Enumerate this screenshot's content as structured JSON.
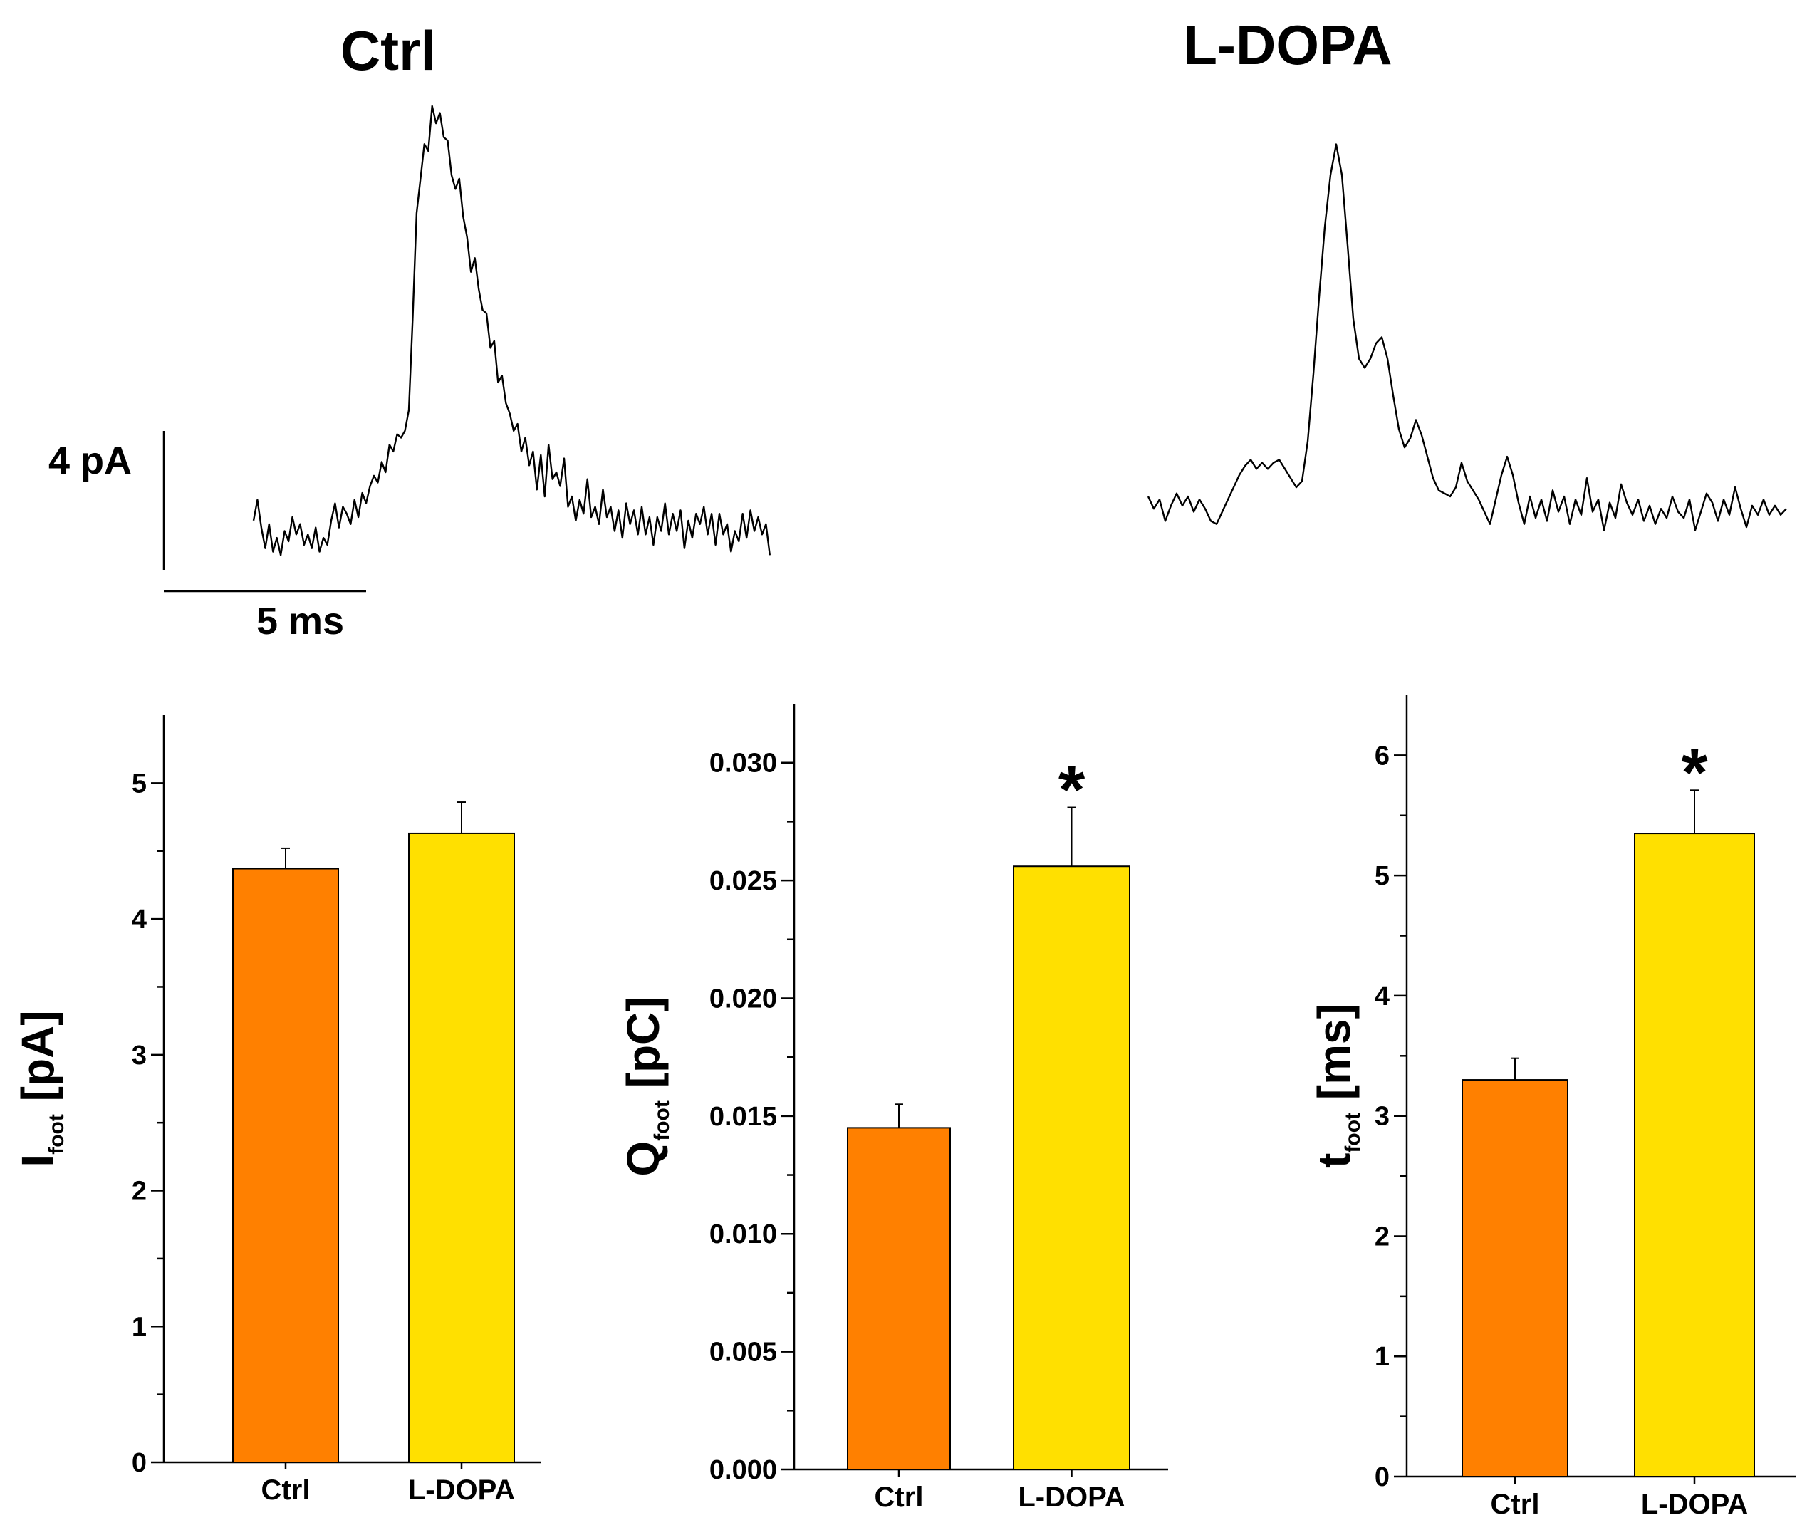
{
  "traces": {
    "ctrl": {
      "title": "Ctrl",
      "points": [
        [
          0,
          0.6
        ],
        [
          0.1,
          1.2
        ],
        [
          0.2,
          0.4
        ],
        [
          0.3,
          -0.2
        ],
        [
          0.4,
          0.5
        ],
        [
          0.5,
          -0.3
        ],
        [
          0.6,
          0.1
        ],
        [
          0.7,
          -0.4
        ],
        [
          0.8,
          0.3
        ],
        [
          0.9,
          0.0
        ],
        [
          1.0,
          0.7
        ],
        [
          1.1,
          0.2
        ],
        [
          1.2,
          0.5
        ],
        [
          1.3,
          -0.1
        ],
        [
          1.4,
          0.2
        ],
        [
          1.5,
          -0.2
        ],
        [
          1.6,
          0.4
        ],
        [
          1.7,
          -0.3
        ],
        [
          1.8,
          0.1
        ],
        [
          1.9,
          -0.1
        ],
        [
          2.0,
          0.6
        ],
        [
          2.1,
          1.1
        ],
        [
          2.2,
          0.4
        ],
        [
          2.3,
          1.0
        ],
        [
          2.4,
          0.8
        ],
        [
          2.5,
          0.5
        ],
        [
          2.6,
          1.2
        ],
        [
          2.7,
          0.7
        ],
        [
          2.8,
          1.4
        ],
        [
          2.9,
          1.1
        ],
        [
          3.0,
          1.6
        ],
        [
          3.1,
          1.9
        ],
        [
          3.2,
          1.7
        ],
        [
          3.3,
          2.3
        ],
        [
          3.4,
          2.0
        ],
        [
          3.5,
          2.8
        ],
        [
          3.6,
          2.6
        ],
        [
          3.7,
          3.1
        ],
        [
          3.8,
          3.0
        ],
        [
          3.9,
          3.2
        ],
        [
          4.0,
          3.8
        ],
        [
          4.1,
          6.5
        ],
        [
          4.2,
          9.5
        ],
        [
          4.3,
          10.5
        ],
        [
          4.4,
          11.5
        ],
        [
          4.5,
          11.3
        ],
        [
          4.6,
          12.6
        ],
        [
          4.7,
          12.1
        ],
        [
          4.8,
          12.4
        ],
        [
          4.9,
          11.7
        ],
        [
          5.0,
          11.6
        ],
        [
          5.1,
          10.6
        ],
        [
          5.2,
          10.2
        ],
        [
          5.3,
          10.5
        ],
        [
          5.4,
          9.4
        ],
        [
          5.5,
          8.8
        ],
        [
          5.6,
          7.8
        ],
        [
          5.7,
          8.2
        ],
        [
          5.8,
          7.3
        ],
        [
          5.9,
          6.7
        ],
        [
          6.0,
          6.6
        ],
        [
          6.1,
          5.6
        ],
        [
          6.2,
          5.8
        ],
        [
          6.3,
          4.6
        ],
        [
          6.4,
          4.8
        ],
        [
          6.5,
          4.0
        ],
        [
          6.6,
          3.7
        ],
        [
          6.7,
          3.2
        ],
        [
          6.8,
          3.4
        ],
        [
          6.9,
          2.6
        ],
        [
          7.0,
          3.0
        ],
        [
          7.1,
          2.2
        ],
        [
          7.2,
          2.6
        ],
        [
          7.3,
          1.5
        ],
        [
          7.4,
          2.5
        ],
        [
          7.5,
          1.3
        ],
        [
          7.6,
          2.8
        ],
        [
          7.7,
          1.8
        ],
        [
          7.8,
          2.0
        ],
        [
          7.9,
          1.6
        ],
        [
          8.0,
          2.4
        ],
        [
          8.1,
          1.0
        ],
        [
          8.2,
          1.3
        ],
        [
          8.3,
          0.6
        ],
        [
          8.4,
          1.2
        ],
        [
          8.5,
          0.8
        ],
        [
          8.6,
          1.8
        ],
        [
          8.7,
          0.7
        ],
        [
          8.8,
          1.0
        ],
        [
          8.9,
          0.5
        ],
        [
          9.0,
          1.5
        ],
        [
          9.1,
          0.7
        ],
        [
          9.2,
          1.0
        ],
        [
          9.3,
          0.3
        ],
        [
          9.4,
          0.9
        ],
        [
          9.5,
          0.1
        ],
        [
          9.6,
          1.1
        ],
        [
          9.7,
          0.5
        ],
        [
          9.8,
          0.9
        ],
        [
          9.9,
          0.2
        ],
        [
          10.0,
          1.0
        ],
        [
          10.1,
          0.2
        ],
        [
          10.2,
          0.7
        ],
        [
          10.3,
          -0.1
        ],
        [
          10.4,
          0.7
        ],
        [
          10.5,
          0.3
        ],
        [
          10.6,
          1.1
        ],
        [
          10.7,
          0.2
        ],
        [
          10.8,
          0.8
        ],
        [
          10.9,
          0.3
        ],
        [
          11.0,
          0.9
        ],
        [
          11.1,
          -0.2
        ],
        [
          11.2,
          0.6
        ],
        [
          11.3,
          0.1
        ],
        [
          11.4,
          0.8
        ],
        [
          11.5,
          0.5
        ],
        [
          11.6,
          1.0
        ],
        [
          11.7,
          0.2
        ],
        [
          11.8,
          0.8
        ],
        [
          11.9,
          -0.1
        ],
        [
          12.0,
          0.8
        ],
        [
          12.1,
          0.2
        ],
        [
          12.2,
          0.5
        ],
        [
          12.3,
          -0.3
        ],
        [
          12.4,
          0.3
        ],
        [
          12.5,
          0.0
        ],
        [
          12.6,
          0.8
        ],
        [
          12.7,
          0.1
        ],
        [
          12.8,
          0.9
        ],
        [
          12.9,
          0.3
        ],
        [
          13.0,
          0.7
        ],
        [
          13.1,
          0.2
        ],
        [
          13.2,
          0.5
        ],
        [
          13.3,
          -0.4
        ]
      ]
    },
    "ldopa": {
      "title": "L-DOPA",
      "points": [
        [
          0,
          1.0
        ],
        [
          0.1,
          0.6
        ],
        [
          0.2,
          0.9
        ],
        [
          0.3,
          0.2
        ],
        [
          0.4,
          0.7
        ],
        [
          0.5,
          1.1
        ],
        [
          0.6,
          0.7
        ],
        [
          0.7,
          1.0
        ],
        [
          0.8,
          0.5
        ],
        [
          0.9,
          0.9
        ],
        [
          1.0,
          0.6
        ],
        [
          1.1,
          0.2
        ],
        [
          1.2,
          0.1
        ],
        [
          1.3,
          0.5
        ],
        [
          1.4,
          0.9
        ],
        [
          1.5,
          1.3
        ],
        [
          1.6,
          1.7
        ],
        [
          1.7,
          2.0
        ],
        [
          1.8,
          2.2
        ],
        [
          1.9,
          1.9
        ],
        [
          2.0,
          2.1
        ],
        [
          2.1,
          1.9
        ],
        [
          2.2,
          2.1
        ],
        [
          2.3,
          2.2
        ],
        [
          2.4,
          1.9
        ],
        [
          2.5,
          1.6
        ],
        [
          2.6,
          1.3
        ],
        [
          2.7,
          1.5
        ],
        [
          2.8,
          2.8
        ],
        [
          2.9,
          5.0
        ],
        [
          3.0,
          7.5
        ],
        [
          3.1,
          9.8
        ],
        [
          3.2,
          11.5
        ],
        [
          3.3,
          12.5
        ],
        [
          3.4,
          11.5
        ],
        [
          3.5,
          9.2
        ],
        [
          3.6,
          6.8
        ],
        [
          3.7,
          5.5
        ],
        [
          3.8,
          5.2
        ],
        [
          3.9,
          5.5
        ],
        [
          4.0,
          6.0
        ],
        [
          4.1,
          6.2
        ],
        [
          4.2,
          5.5
        ],
        [
          4.3,
          4.3
        ],
        [
          4.4,
          3.2
        ],
        [
          4.5,
          2.6
        ],
        [
          4.6,
          2.9
        ],
        [
          4.7,
          3.5
        ],
        [
          4.8,
          3.0
        ],
        [
          4.9,
          2.3
        ],
        [
          5.0,
          1.6
        ],
        [
          5.1,
          1.2
        ],
        [
          5.2,
          1.1
        ],
        [
          5.3,
          1.0
        ],
        [
          5.4,
          1.3
        ],
        [
          5.5,
          2.1
        ],
        [
          5.6,
          1.5
        ],
        [
          5.7,
          1.2
        ],
        [
          5.8,
          0.9
        ],
        [
          5.9,
          0.5
        ],
        [
          6.0,
          0.1
        ],
        [
          6.1,
          0.9
        ],
        [
          6.2,
          1.7
        ],
        [
          6.3,
          2.3
        ],
        [
          6.4,
          1.7
        ],
        [
          6.5,
          0.8
        ],
        [
          6.6,
          0.1
        ],
        [
          6.7,
          1.0
        ],
        [
          6.8,
          0.3
        ],
        [
          6.9,
          0.9
        ],
        [
          7.0,
          0.2
        ],
        [
          7.1,
          1.2
        ],
        [
          7.2,
          0.5
        ],
        [
          7.3,
          1.0
        ],
        [
          7.4,
          0.1
        ],
        [
          7.5,
          0.9
        ],
        [
          7.6,
          0.4
        ],
        [
          7.7,
          1.6
        ],
        [
          7.8,
          0.5
        ],
        [
          7.9,
          0.9
        ],
        [
          8.0,
          -0.1
        ],
        [
          8.1,
          0.8
        ],
        [
          8.2,
          0.3
        ],
        [
          8.3,
          1.4
        ],
        [
          8.4,
          0.8
        ],
        [
          8.5,
          0.4
        ],
        [
          8.6,
          0.9
        ],
        [
          8.7,
          0.2
        ],
        [
          8.8,
          0.7
        ],
        [
          8.9,
          0.1
        ],
        [
          9.0,
          0.6
        ],
        [
          9.1,
          0.3
        ],
        [
          9.2,
          1.0
        ],
        [
          9.3,
          0.5
        ],
        [
          9.4,
          0.3
        ],
        [
          9.5,
          0.9
        ],
        [
          9.6,
          -0.1
        ],
        [
          9.7,
          0.5
        ],
        [
          9.8,
          1.1
        ],
        [
          9.9,
          0.8
        ],
        [
          10.0,
          0.2
        ],
        [
          10.1,
          0.9
        ],
        [
          10.2,
          0.4
        ],
        [
          10.3,
          1.3
        ],
        [
          10.4,
          0.6
        ],
        [
          10.5,
          0.0
        ],
        [
          10.6,
          0.7
        ],
        [
          10.7,
          0.4
        ],
        [
          10.8,
          0.9
        ],
        [
          10.9,
          0.4
        ],
        [
          11.0,
          0.7
        ],
        [
          11.1,
          0.4
        ],
        [
          11.2,
          0.6
        ]
      ]
    },
    "scale_bar": {
      "y_label": "4 pA",
      "x_label": "5 ms"
    }
  },
  "chart_data": [
    {
      "type": "bar",
      "categories": [
        "Ctrl",
        "L-DOPA"
      ],
      "values": [
        4.37,
        4.63
      ],
      "errors": [
        0.15,
        0.23
      ],
      "colors": [
        "#ff8000",
        "#ffe000"
      ],
      "ylabel": "I",
      "ylabel_sub": "foot",
      "ylabel_unit": " [pA]",
      "ylim": [
        0,
        5.5
      ],
      "yticks": [
        "0",
        "1",
        "2",
        "3",
        "4",
        "5"
      ],
      "significance": [
        "",
        ""
      ]
    },
    {
      "type": "bar",
      "categories": [
        "Ctrl",
        "L-DOPA"
      ],
      "values": [
        0.0145,
        0.0256
      ],
      "errors": [
        0.001,
        0.0025
      ],
      "colors": [
        "#ff8000",
        "#ffe000"
      ],
      "ylabel": "Q",
      "ylabel_sub": "foot",
      "ylabel_unit": " [pC]",
      "ylim": [
        0,
        0.0325
      ],
      "yticks": [
        "0.000",
        "0.005",
        "0.010",
        "0.015",
        "0.020",
        "0.025",
        "0.030"
      ],
      "significance": [
        "",
        "*"
      ]
    },
    {
      "type": "bar",
      "categories": [
        "Ctrl",
        "L-DOPA"
      ],
      "values": [
        3.3,
        5.35
      ],
      "errors": [
        0.18,
        0.36
      ],
      "colors": [
        "#ff8000",
        "#ffe000"
      ],
      "ylabel": "t",
      "ylabel_sub": "foot",
      "ylabel_unit": " [ms]",
      "ylim": [
        0,
        6.5
      ],
      "yticks": [
        "0",
        "1",
        "2",
        "3",
        "4",
        "5",
        "6"
      ],
      "significance": [
        "",
        "*"
      ]
    }
  ]
}
